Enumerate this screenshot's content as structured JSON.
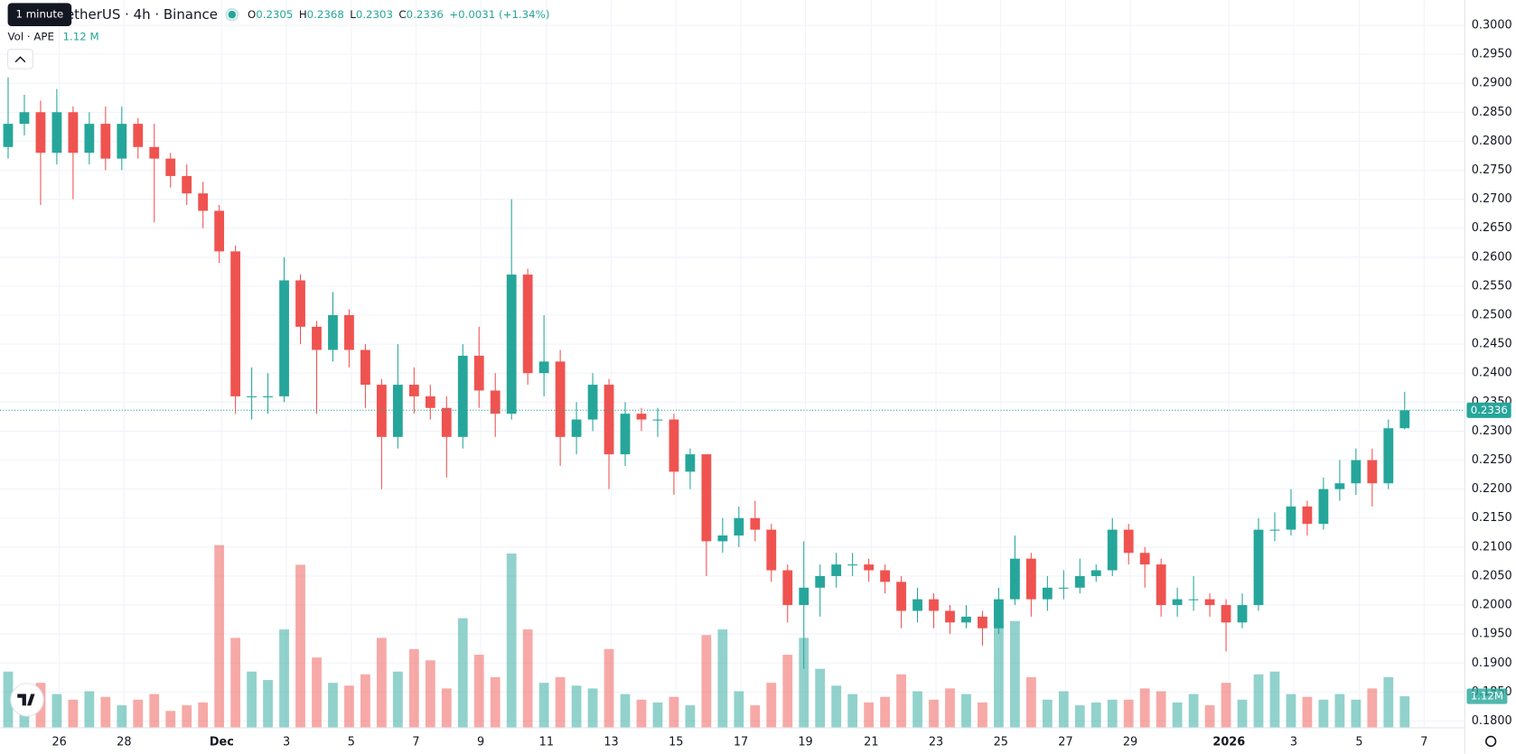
{
  "header": {
    "tooltip": "1 minute",
    "symbol": "TetherUS · 4h · Binance",
    "ohlc": [
      {
        "label": "O",
        "value": "0.2305"
      },
      {
        "label": "H",
        "value": "0.2368"
      },
      {
        "label": "L",
        "value": "0.2303"
      },
      {
        "label": "C",
        "value": "0.2336"
      }
    ],
    "change": "+0.0031 (+1.34%)",
    "volume_title": "Vol · APE",
    "volume_value": "1.12 M",
    "volume_axis_label": "1.12M"
  },
  "chart_data": {
    "type": "candlestick",
    "up_color": "#26a69a",
    "down_color": "#ef5350",
    "grid": true,
    "xlim": [
      -0.5,
      89.7
    ],
    "ylim": [
      0.18,
      0.3
    ],
    "volume_lim": [
      0,
      25
    ],
    "xticks": [
      {
        "value": 3.15,
        "label": "26"
      },
      {
        "value": 7.14,
        "label": "28"
      },
      {
        "value": 13.15,
        "label": "Dec"
      },
      {
        "value": 17.14,
        "label": "3"
      },
      {
        "value": 21.13,
        "label": "5"
      },
      {
        "value": 25.12,
        "label": "7"
      },
      {
        "value": 29.1,
        "label": "9"
      },
      {
        "value": 33.15,
        "label": "11"
      },
      {
        "value": 37.14,
        "label": "13"
      },
      {
        "value": 41.13,
        "label": "15"
      },
      {
        "value": 45.12,
        "label": "17"
      },
      {
        "value": 49.1,
        "label": "19"
      },
      {
        "value": 53.15,
        "label": "21"
      },
      {
        "value": 57.14,
        "label": "23"
      },
      {
        "value": 61.13,
        "label": "25"
      },
      {
        "value": 65.12,
        "label": "27"
      },
      {
        "value": 69.1,
        "label": "29"
      },
      {
        "value": 75.18,
        "label": "2026"
      },
      {
        "value": 79.17,
        "label": "3"
      },
      {
        "value": 83.2,
        "label": "5"
      },
      {
        "value": 87.2,
        "label": "7"
      }
    ],
    "yticks": [
      {
        "value": 0.18,
        "label": "0.1800"
      },
      {
        "value": 0.185,
        "label": "0.1850"
      },
      {
        "value": 0.19,
        "label": "0.1900"
      },
      {
        "value": 0.195,
        "label": "0.1950"
      },
      {
        "value": 0.2,
        "label": "0.2000"
      },
      {
        "value": 0.205,
        "label": "0.2050"
      },
      {
        "value": 0.21,
        "label": "0.2100"
      },
      {
        "value": 0.215,
        "label": "0.2150"
      },
      {
        "value": 0.22,
        "label": "0.2200"
      },
      {
        "value": 0.225,
        "label": "0.2250"
      },
      {
        "value": 0.23,
        "label": "0.2300"
      },
      {
        "value": 0.235,
        "label": "0.2350"
      },
      {
        "value": 0.24,
        "label": "0.2400"
      },
      {
        "value": 0.245,
        "label": "0.2450"
      },
      {
        "value": 0.25,
        "label": "0.2500"
      },
      {
        "value": 0.255,
        "label": "0.2550"
      },
      {
        "value": 0.26,
        "label": "0.2600"
      },
      {
        "value": 0.265,
        "label": "0.2650"
      },
      {
        "value": 0.27,
        "label": "0.2700"
      },
      {
        "value": 0.275,
        "label": "0.2750"
      },
      {
        "value": 0.28,
        "label": "0.2800"
      },
      {
        "value": 0.285,
        "label": "0.2850"
      },
      {
        "value": 0.29,
        "label": "0.2900"
      },
      {
        "value": 0.295,
        "label": "0.2950"
      },
      {
        "value": 0.3,
        "label": "0.3000"
      }
    ],
    "open": [
      0.279,
      0.283,
      0.285,
      0.278,
      0.285,
      0.278,
      0.283,
      0.277,
      0.283,
      0.279,
      0.277,
      0.274,
      0.271,
      0.268,
      0.261,
      0.236,
      0.236,
      0.236,
      0.256,
      0.248,
      0.244,
      0.25,
      0.244,
      0.238,
      0.229,
      0.238,
      0.236,
      0.234,
      0.229,
      0.243,
      0.237,
      0.233,
      0.257,
      0.24,
      0.242,
      0.229,
      0.232,
      0.238,
      0.226,
      0.233,
      0.232,
      0.232,
      0.223,
      0.226,
      0.211,
      0.212,
      0.215,
      0.213,
      0.206,
      0.2,
      0.203,
      0.205,
      0.207,
      0.207,
      0.206,
      0.204,
      0.199,
      0.201,
      0.199,
      0.197,
      0.198,
      0.196,
      0.201,
      0.208,
      0.201,
      0.203,
      0.203,
      0.205,
      0.206,
      0.213,
      0.209,
      0.207,
      0.2,
      0.201,
      0.201,
      0.2,
      0.197,
      0.2,
      0.213,
      0.213,
      0.217,
      0.214,
      0.22,
      0.221,
      0.225,
      0.221,
      0.2305
    ],
    "high": [
      0.291,
      0.288,
      0.287,
      0.289,
      0.286,
      0.285,
      0.286,
      0.286,
      0.284,
      0.283,
      0.278,
      0.276,
      0.273,
      0.269,
      0.262,
      0.241,
      0.24,
      0.26,
      0.257,
      0.249,
      0.254,
      0.251,
      0.245,
      0.239,
      0.245,
      0.241,
      0.238,
      0.236,
      0.245,
      0.248,
      0.24,
      0.27,
      0.258,
      0.25,
      0.244,
      0.235,
      0.24,
      0.239,
      0.235,
      0.234,
      0.234,
      0.233,
      0.227,
      0.226,
      0.215,
      0.217,
      0.218,
      0.214,
      0.207,
      0.211,
      0.207,
      0.209,
      0.209,
      0.208,
      0.207,
      0.205,
      0.203,
      0.202,
      0.2,
      0.2,
      0.199,
      0.203,
      0.212,
      0.209,
      0.205,
      0.206,
      0.208,
      0.207,
      0.215,
      0.214,
      0.21,
      0.208,
      0.203,
      0.205,
      0.202,
      0.201,
      0.202,
      0.215,
      0.216,
      0.22,
      0.218,
      0.222,
      0.225,
      0.227,
      0.227,
      0.232,
      0.2368
    ],
    "low": [
      0.277,
      0.281,
      0.269,
      0.276,
      0.27,
      0.276,
      0.275,
      0.275,
      0.277,
      0.266,
      0.272,
      0.269,
      0.265,
      0.259,
      0.233,
      0.232,
      0.233,
      0.235,
      0.245,
      0.233,
      0.242,
      0.241,
      0.234,
      0.22,
      0.227,
      0.233,
      0.232,
      0.222,
      0.227,
      0.234,
      0.229,
      0.232,
      0.238,
      0.236,
      0.224,
      0.226,
      0.23,
      0.22,
      0.224,
      0.23,
      0.229,
      0.219,
      0.22,
      0.205,
      0.209,
      0.21,
      0.211,
      0.204,
      0.197,
      0.189,
      0.198,
      0.203,
      0.205,
      0.204,
      0.202,
      0.196,
      0.197,
      0.196,
      0.195,
      0.196,
      0.193,
      0.195,
      0.2,
      0.198,
      0.199,
      0.201,
      0.202,
      0.204,
      0.205,
      0.207,
      0.203,
      0.198,
      0.198,
      0.199,
      0.198,
      0.192,
      0.196,
      0.199,
      0.211,
      0.212,
      0.212,
      0.213,
      0.218,
      0.219,
      0.217,
      0.22,
      0.2303
    ],
    "close": [
      0.283,
      0.285,
      0.278,
      0.285,
      0.278,
      0.283,
      0.277,
      0.283,
      0.279,
      0.277,
      0.274,
      0.271,
      0.268,
      0.261,
      0.236,
      0.236,
      0.236,
      0.256,
      0.248,
      0.244,
      0.25,
      0.244,
      0.238,
      0.229,
      0.238,
      0.236,
      0.234,
      0.229,
      0.243,
      0.237,
      0.233,
      0.257,
      0.24,
      0.242,
      0.229,
      0.232,
      0.238,
      0.226,
      0.233,
      0.232,
      0.232,
      0.223,
      0.226,
      0.211,
      0.212,
      0.215,
      0.213,
      0.206,
      0.2,
      0.203,
      0.205,
      0.207,
      0.207,
      0.206,
      0.204,
      0.199,
      0.201,
      0.199,
      0.197,
      0.198,
      0.196,
      0.201,
      0.208,
      0.201,
      0.203,
      0.203,
      0.205,
      0.206,
      0.213,
      0.209,
      0.207,
      0.2,
      0.201,
      0.201,
      0.2,
      0.197,
      0.2,
      0.213,
      0.213,
      0.217,
      0.214,
      0.22,
      0.221,
      0.225,
      0.221,
      0.2305,
      0.2336
    ],
    "volume": [
      2.0,
      1.3,
      1.6,
      1.2,
      1.0,
      1.3,
      1.1,
      0.8,
      1.0,
      1.2,
      0.6,
      0.8,
      0.9,
      6.5,
      3.2,
      2.0,
      1.7,
      3.5,
      5.8,
      2.5,
      1.6,
      1.5,
      1.9,
      3.2,
      2.0,
      2.8,
      2.4,
      1.4,
      3.9,
      2.6,
      1.8,
      6.2,
      3.5,
      1.6,
      1.8,
      1.5,
      1.4,
      2.8,
      1.2,
      1.0,
      0.9,
      1.1,
      0.8,
      3.3,
      3.5,
      1.3,
      0.8,
      1.6,
      2.6,
      3.2,
      2.1,
      1.5,
      1.2,
      0.9,
      1.1,
      1.9,
      1.3,
      1.0,
      1.4,
      1.2,
      0.9,
      3.6,
      3.8,
      1.8,
      1.0,
      1.3,
      0.8,
      0.9,
      1.0,
      1.0,
      1.4,
      1.3,
      0.9,
      1.2,
      0.8,
      1.6,
      1.0,
      1.9,
      2.0,
      1.2,
      1.1,
      1.0,
      1.2,
      1.0,
      1.4,
      1.8,
      1.12
    ]
  }
}
